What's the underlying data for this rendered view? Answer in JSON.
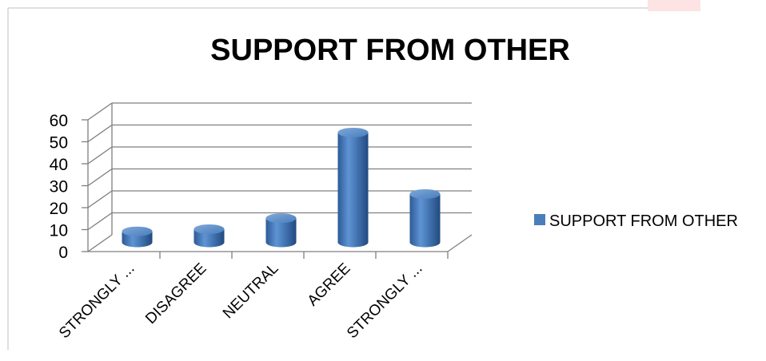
{
  "chart_data": {
    "type": "bar",
    "title": "SUPPORT FROM OTHER",
    "categories": [
      "STRONGLY ...",
      "DISAGREE",
      "NEUTRAL",
      "AGREE",
      "STRONGLY ..."
    ],
    "series": [
      {
        "name": "SUPPORT FROM OTHER",
        "values": [
          5,
          6,
          11,
          50,
          22
        ],
        "color": "#4a7ebb"
      }
    ],
    "ylim": [
      0,
      60
    ],
    "yticks": [
      "0",
      "10",
      "20",
      "30",
      "40",
      "50",
      "60"
    ],
    "grid": true,
    "legend_position": "right",
    "style": "3d-cylinder"
  }
}
